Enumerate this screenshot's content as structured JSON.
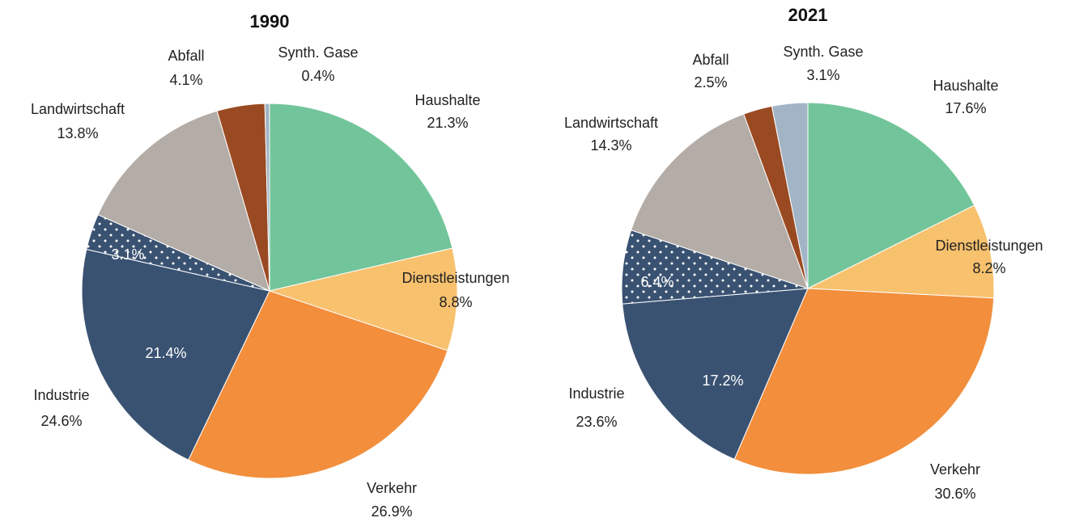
{
  "chart_data": [
    {
      "type": "pie",
      "title": "1990",
      "categories": [
        "Haushalte",
        "Dienstleistungen",
        "Verkehr",
        "Industrie",
        "Landwirtschaft",
        "Abfall",
        "Synth. Gase"
      ],
      "values": [
        21.3,
        8.8,
        26.9,
        24.6,
        13.8,
        4.1,
        0.4
      ],
      "value_labels": [
        "21.3%",
        "8.8%",
        "26.9%",
        "24.6%",
        "13.8%",
        "4.1%",
        "0.4%"
      ],
      "colors": [
        "#72c59a",
        "#f7c16e",
        "#f28e3c",
        "#3a5272",
        "#b4aca6",
        "#9a4a22",
        "#a2b5c6"
      ],
      "parts": [
        null,
        null,
        null,
        {
          "values": [
            21.4,
            3.1
          ],
          "value_labels": [
            "21.4%",
            "3.1%"
          ],
          "patterns": [
            "solid",
            "dotted"
          ]
        },
        null,
        null,
        null
      ]
    },
    {
      "type": "pie",
      "title": "2021",
      "categories": [
        "Haushalte",
        "Dienstleistungen",
        "Verkehr",
        "Industrie",
        "Landwirtschaft",
        "Abfall",
        "Synth. Gase"
      ],
      "values": [
        17.6,
        8.2,
        30.6,
        23.6,
        14.3,
        2.5,
        3.1
      ],
      "value_labels": [
        "17.6%",
        "8.2%",
        "30.6%",
        "23.6%",
        "14.3%",
        "2.5%",
        "3.1%"
      ],
      "colors": [
        "#72c59a",
        "#f7c16e",
        "#f28e3c",
        "#3a5272",
        "#b4aca6",
        "#9a4a22",
        "#a2b5c6"
      ],
      "parts": [
        null,
        null,
        null,
        {
          "values": [
            17.2,
            6.4
          ],
          "value_labels": [
            "17.2%",
            "6.4%"
          ],
          "patterns": [
            "solid",
            "dotted"
          ]
        },
        null,
        null,
        null
      ]
    }
  ]
}
